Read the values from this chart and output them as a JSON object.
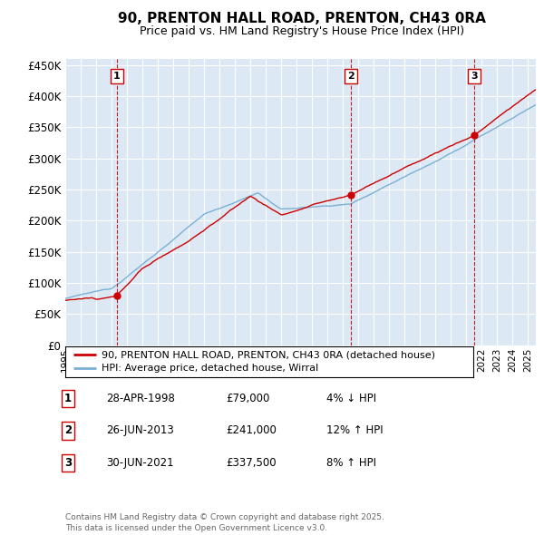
{
  "title": "90, PRENTON HALL ROAD, PRENTON, CH43 0RA",
  "subtitle": "Price paid vs. HM Land Registry's House Price Index (HPI)",
  "ylabel_ticks": [
    "£0",
    "£50K",
    "£100K",
    "£150K",
    "£200K",
    "£250K",
    "£300K",
    "£350K",
    "£400K",
    "£450K"
  ],
  "ytick_values": [
    0,
    50000,
    100000,
    150000,
    200000,
    250000,
    300000,
    350000,
    400000,
    450000
  ],
  "ylim": [
    0,
    460000
  ],
  "xlim_start": 1995.0,
  "xlim_end": 2025.5,
  "background_color": "#dce9f5",
  "grid_color": "#ffffff",
  "line_color_red": "#cc0000",
  "line_color_blue": "#7ab0d4",
  "sale_dates": [
    1998.33,
    2013.5,
    2021.5
  ],
  "sale_prices": [
    79000,
    241000,
    337500
  ],
  "sale_labels": [
    "1",
    "2",
    "3"
  ],
  "legend_line1": "90, PRENTON HALL ROAD, PRENTON, CH43 0RA (detached house)",
  "legend_line2": "HPI: Average price, detached house, Wirral",
  "table_entries": [
    {
      "num": "1",
      "date": "28-APR-1998",
      "price": "£79,000",
      "pct": "4% ↓ HPI"
    },
    {
      "num": "2",
      "date": "26-JUN-2013",
      "price": "£241,000",
      "pct": "12% ↑ HPI"
    },
    {
      "num": "3",
      "date": "30-JUN-2021",
      "price": "£337,500",
      "pct": "8% ↑ HPI"
    }
  ],
  "footer": "Contains HM Land Registry data © Crown copyright and database right 2025.\nThis data is licensed under the Open Government Licence v3.0."
}
